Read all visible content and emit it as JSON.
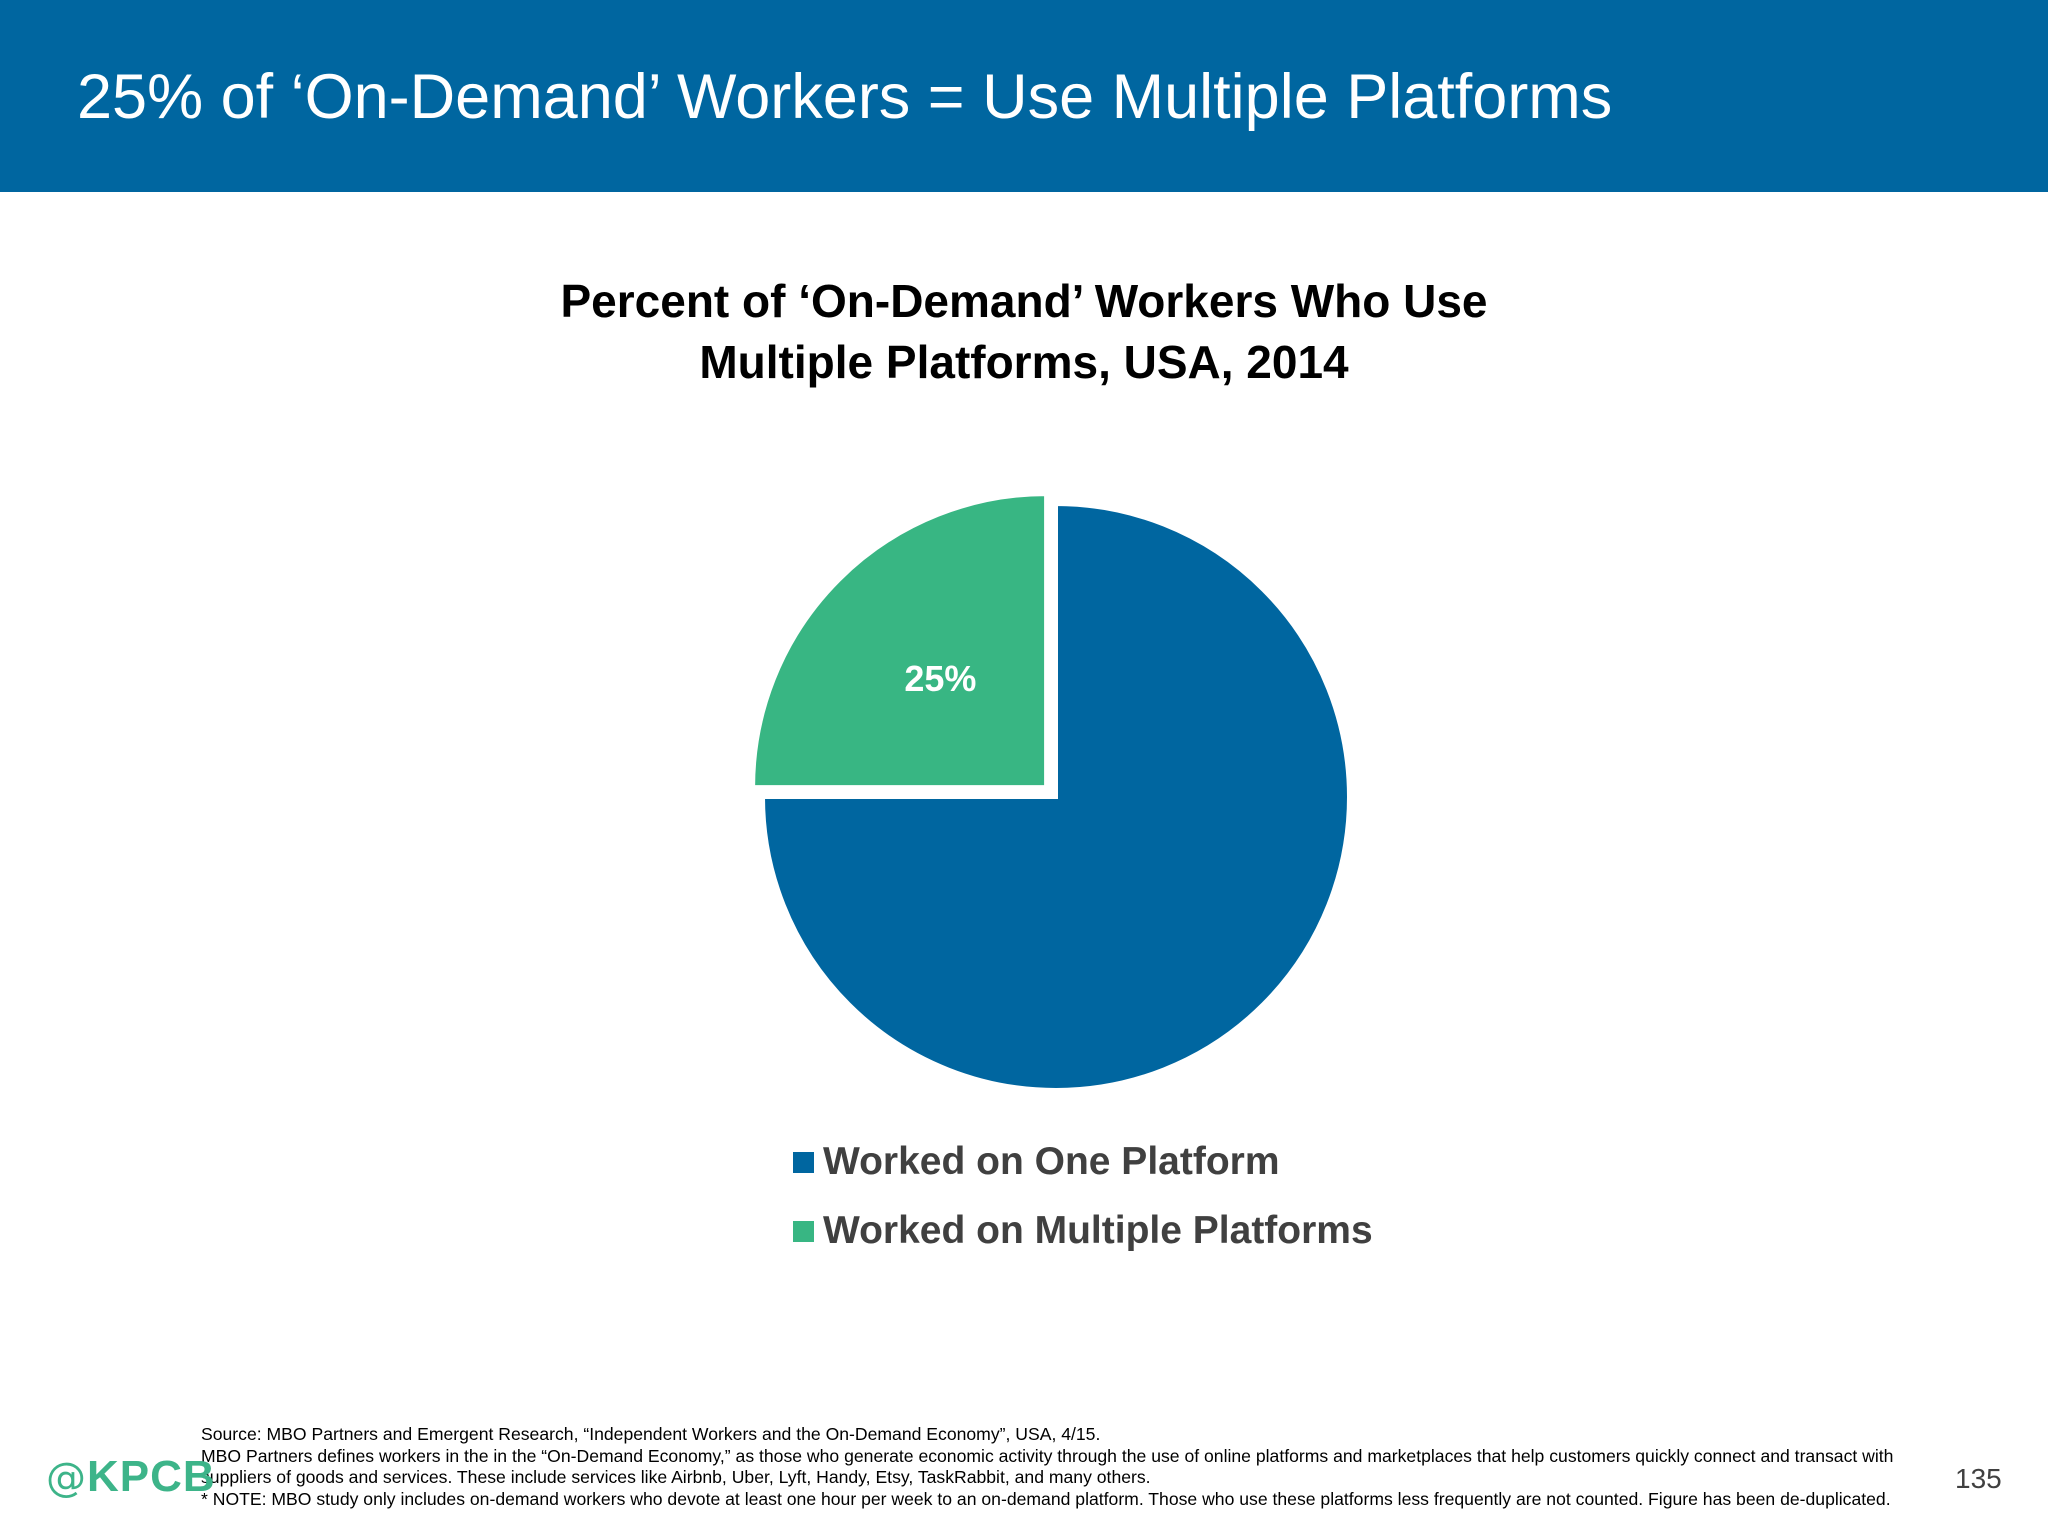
{
  "slide": {
    "title": "25% of ‘On-Demand’ Workers = Use Multiple Platforms",
    "page_number": "135"
  },
  "logo": {
    "at": "@",
    "name": "KPCB"
  },
  "chart_data": {
    "type": "pie",
    "title_lines": [
      "Percent of ‘On-Demand’ Workers Who Use",
      "Multiple Platforms, USA, 2014"
    ],
    "slices": [
      {
        "name": "Worked on One Platform",
        "value": 75,
        "color": "#0066A0",
        "label": ""
      },
      {
        "name": "Worked on Multiple Platforms",
        "value": 25,
        "color": "#38B683",
        "label": "25%",
        "exploded": true
      }
    ],
    "legend_position": "bottom"
  },
  "footnote": {
    "lines": [
      "Source:  MBO Partners and Emergent Research, “Independent Workers and the On-Demand Economy”, USA, 4/15.",
      "MBO Partners defines workers in the in the “On-Demand Economy,” as those who generate economic activity through the use of online platforms and marketplaces that help customers quickly connect and transact with suppliers of goods and services. These include services like Airbnb, Uber, Lyft, Handy, Etsy, TaskRabbit, and many others.",
      "* NOTE: MBO study only includes on-demand workers who devote at least one hour per week to an on-demand platform. Those who use these platforms less frequently are not counted. Figure has been de-duplicated."
    ]
  }
}
